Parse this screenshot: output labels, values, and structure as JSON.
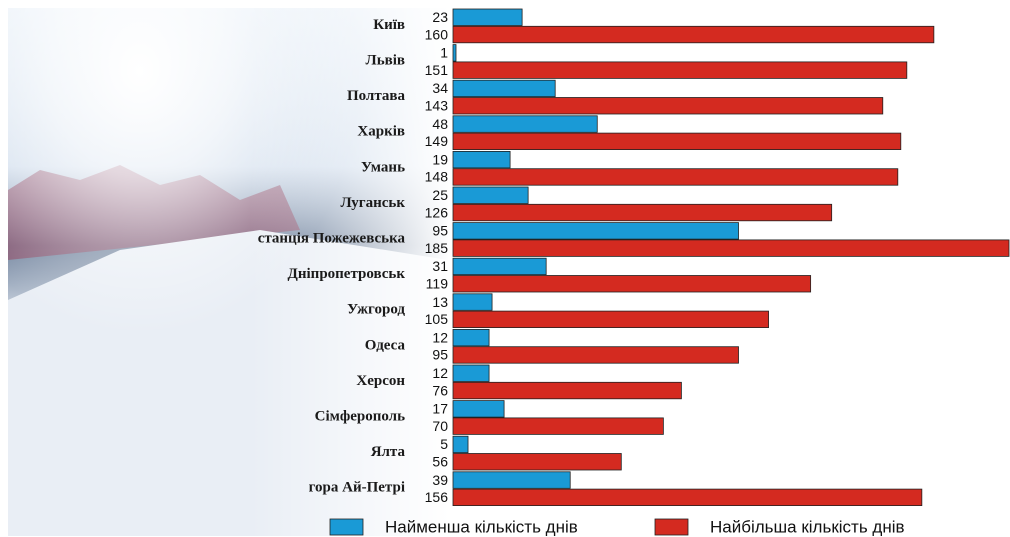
{
  "chart_data": {
    "type": "bar",
    "orientation": "horizontal",
    "categories": [
      "Київ",
      "Львів",
      "Полтава",
      "Харків",
      "Умань",
      "Луганськ",
      "станція Пожежевська",
      "Дніпропетровськ",
      "Ужгород",
      "Одеса",
      "Херсон",
      "Сімферополь",
      "Ялта",
      "гора Ай-Петрі"
    ],
    "series": [
      {
        "name": "Найменша кількість днів",
        "color": "#1a9ad6",
        "values": [
          23,
          1,
          34,
          48,
          19,
          25,
          95,
          31,
          13,
          12,
          12,
          17,
          5,
          39
        ]
      },
      {
        "name": "Найбільша кількість днів",
        "color": "#d42a20",
        "values": [
          160,
          151,
          143,
          149,
          148,
          126,
          185,
          119,
          105,
          95,
          76,
          70,
          56,
          156
        ]
      }
    ]
  }
}
